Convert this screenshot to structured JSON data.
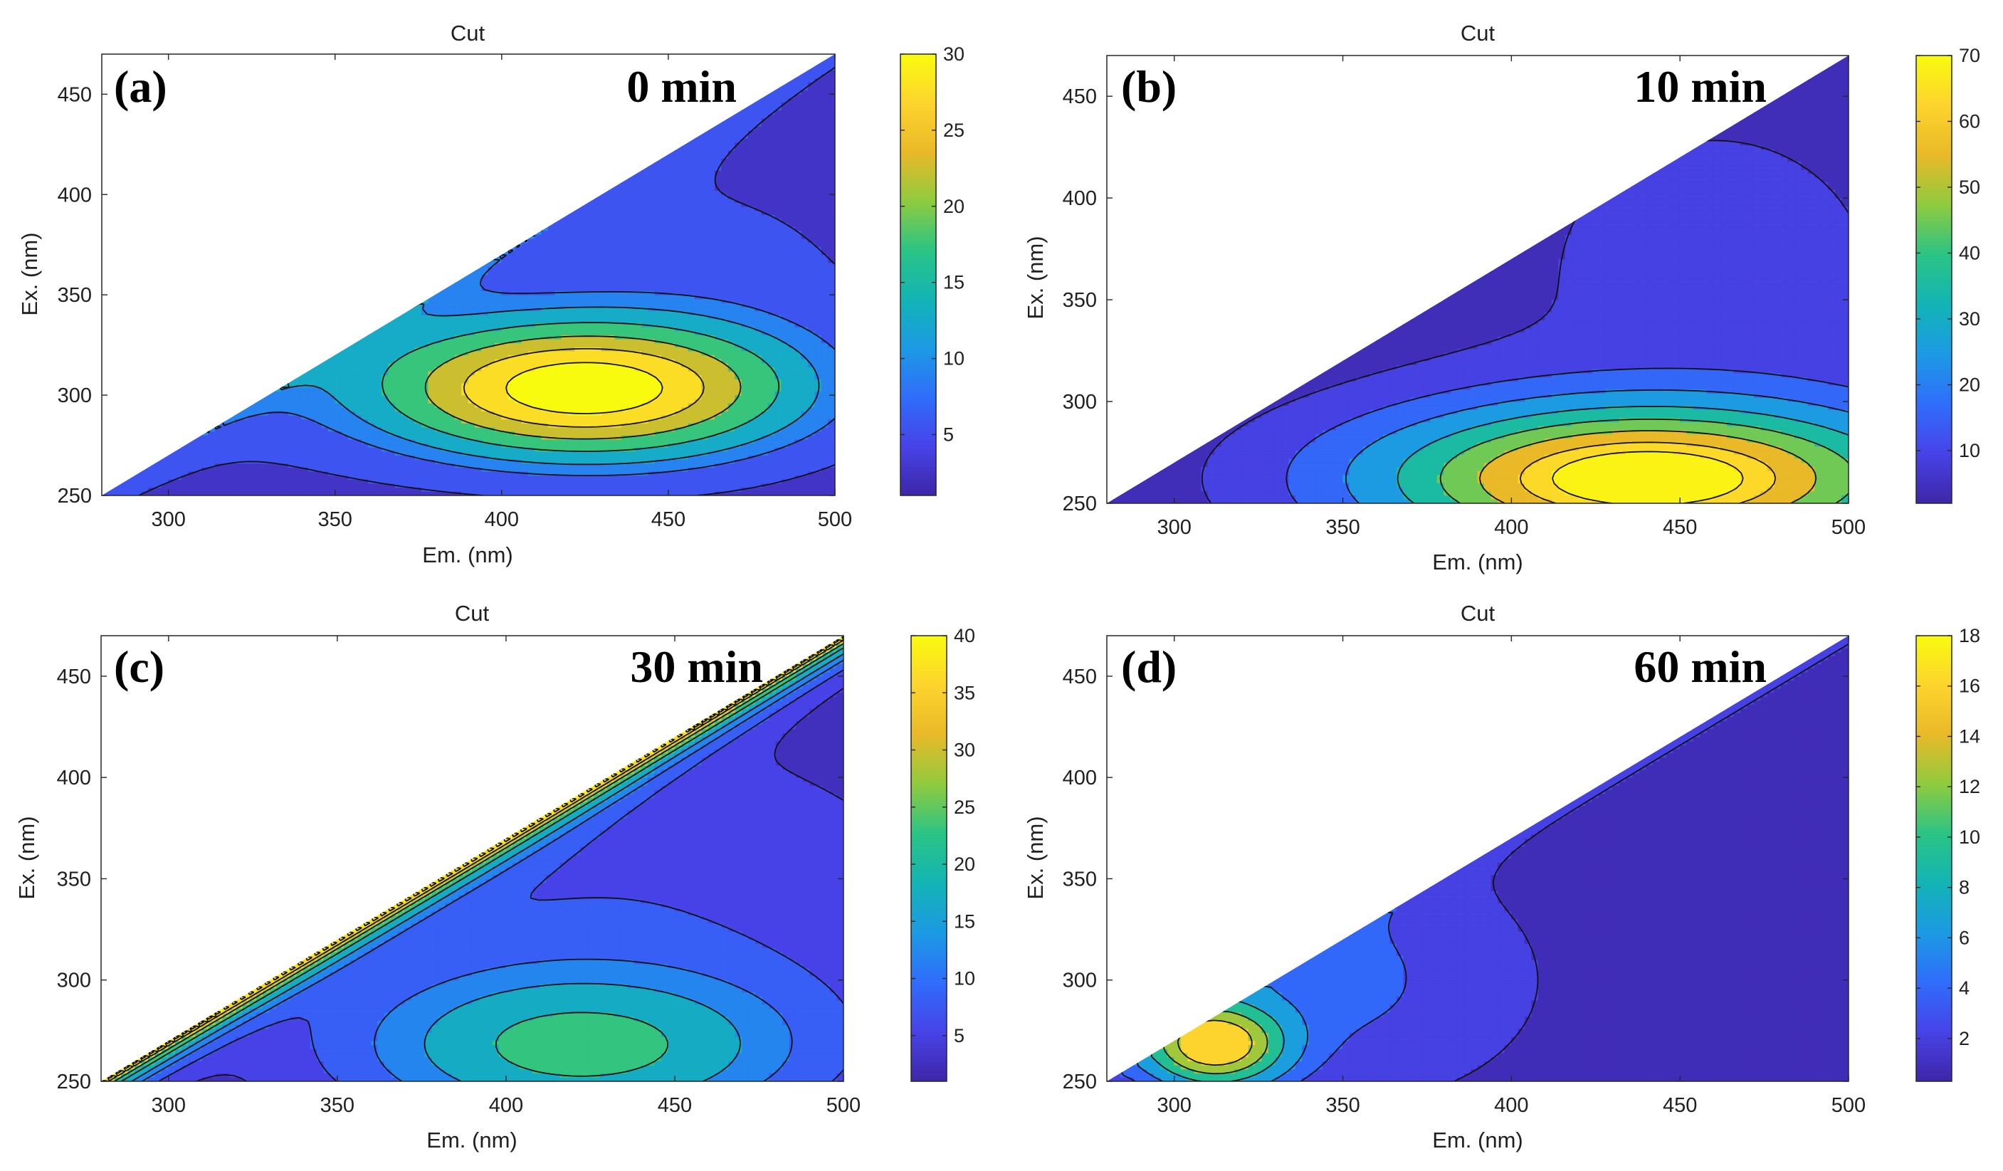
{
  "figure": {
    "background": "#ffffff"
  },
  "colormap": [
    "#3e26a8",
    "#4743e8",
    "#2f6dfb",
    "#1c9ae4",
    "#12b4b5",
    "#2bc484",
    "#8fcb3e",
    "#e9b928",
    "#fdd42d",
    "#f9fb0e"
  ],
  "chart_data": [
    {
      "id": "a",
      "type": "contour",
      "title": "Cut",
      "panel_label": "(a)",
      "time_label": "0 min",
      "xlabel": "Em. (nm)",
      "ylabel": "Ex. (nm)",
      "xlim": [
        280,
        500
      ],
      "ylim": [
        250,
        470
      ],
      "x_ticks": [
        300,
        350,
        400,
        450,
        500
      ],
      "y_ticks": [
        250,
        300,
        350,
        400,
        450
      ],
      "clim": [
        1,
        30
      ],
      "colorbar_ticks": [
        5,
        10,
        15,
        20,
        25,
        30
      ],
      "peaks": [
        {
          "em": 424,
          "ex": 303,
          "value": 31,
          "sigma_em": 42,
          "sigma_ex": 23
        },
        {
          "em": 330,
          "ex": 340,
          "value": 3.5,
          "sigma_em": 70,
          "sigma_ex": 70
        },
        {
          "em": 470,
          "ex": 345,
          "value": 3.5,
          "sigma_em": 45,
          "sigma_ex": 65
        }
      ],
      "ridge": {
        "value": 6,
        "width": 12,
        "strength": 0.7
      },
      "floor": 0.5,
      "levels": [
        1.5,
        3.5,
        7.5,
        10.5,
        15,
        20,
        25,
        30
      ]
    },
    {
      "id": "b",
      "type": "contour",
      "title": "Cut",
      "panel_label": "(b)",
      "time_label": "10 min",
      "xlabel": "Em. (nm)",
      "ylabel": "Ex. (nm)",
      "xlim": [
        280,
        500
      ],
      "ylim": [
        250,
        470
      ],
      "x_ticks": [
        300,
        350,
        400,
        450,
        500
      ],
      "y_ticks": [
        250,
        300,
        350,
        400,
        450
      ],
      "clim": [
        2,
        70
      ],
      "colorbar_ticks": [
        10,
        20,
        30,
        40,
        50,
        60,
        70
      ],
      "peaks": [
        {
          "em": 440,
          "ex": 262,
          "value": 72,
          "sigma_em": 52,
          "sigma_ex": 24
        },
        {
          "em": 460,
          "ex": 360,
          "value": 4,
          "sigma_em": 60,
          "sigma_ex": 90
        }
      ],
      "ridge": {
        "value": 0,
        "width": 10,
        "strength": 0
      },
      "floor": 3,
      "levels": [
        6,
        12,
        20,
        30,
        40,
        50,
        60,
        67
      ]
    },
    {
      "id": "c",
      "type": "contour",
      "title": "Cut",
      "panel_label": "(c)",
      "time_label": "30 min",
      "xlabel": "Em. (nm)",
      "ylabel": "Ex. (nm)",
      "xlim": [
        280,
        500
      ],
      "ylim": [
        250,
        470
      ],
      "x_ticks": [
        300,
        350,
        400,
        450,
        500
      ],
      "y_ticks": [
        250,
        300,
        350,
        400,
        450
      ],
      "clim": [
        1,
        40
      ],
      "colorbar_ticks": [
        5,
        10,
        15,
        20,
        25,
        30,
        35,
        40
      ],
      "peaks": [
        {
          "em": 422,
          "ex": 267,
          "value": 18,
          "sigma_em": 40,
          "sigma_ex": 24
        },
        {
          "em": 430,
          "ex": 320,
          "value": 4,
          "sigma_em": 70,
          "sigma_ex": 70
        }
      ],
      "ridge": {
        "value": 40,
        "width": 7,
        "strength": 1
      },
      "floor": 2.5,
      "levels": [
        4,
        6.5,
        10,
        14,
        20,
        26,
        32,
        38
      ]
    },
    {
      "id": "d",
      "type": "contour",
      "title": "Cut",
      "panel_label": "(d)",
      "time_label": "60 min",
      "xlabel": "Em. (nm)",
      "ylabel": "Ex. (nm)",
      "xlim": [
        280,
        500
      ],
      "ylim": [
        250,
        470
      ],
      "x_ticks": [
        300,
        350,
        400,
        450,
        500
      ],
      "y_ticks": [
        250,
        300,
        350,
        400,
        450
      ],
      "clim": [
        0.3,
        18
      ],
      "colorbar_ticks": [
        2,
        4,
        6,
        8,
        10,
        12,
        14,
        16,
        18
      ],
      "peaks": [
        {
          "em": 312,
          "ex": 268,
          "value": 16,
          "sigma_em": 14,
          "sigma_ex": 14
        },
        {
          "em": 345,
          "ex": 300,
          "value": 3,
          "sigma_em": 35,
          "sigma_ex": 35
        }
      ],
      "ridge": {
        "value": 1.5,
        "width": 10,
        "strength": 0.6
      },
      "floor": 0.6,
      "levels": [
        1.2,
        3,
        5,
        8,
        11,
        14
      ]
    }
  ]
}
